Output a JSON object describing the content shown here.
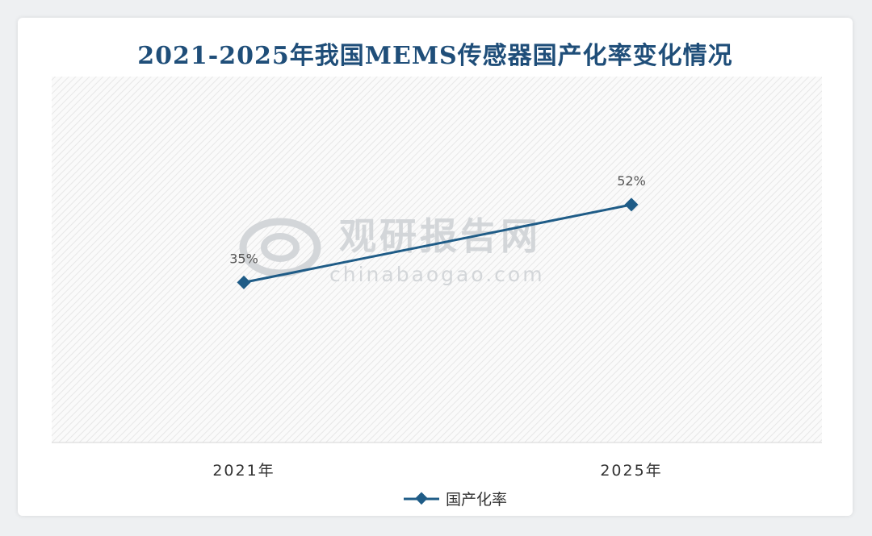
{
  "chart_data": {
    "type": "line",
    "title": "2021-2025年我国MEMS传感器国产化率变化情况",
    "categories": [
      "2021年",
      "2025年"
    ],
    "series": [
      {
        "name": "国产化率",
        "values": [
          35,
          52
        ],
        "labels": [
          "35%",
          "52%"
        ]
      }
    ],
    "ylim": [
      0,
      80
    ],
    "grid": false,
    "legend": "bottom-center",
    "colors": {
      "line": "#1f5c87",
      "title": "#1f4e79"
    }
  },
  "watermark": {
    "name": "观研报告网",
    "url": "chinabaogao.com"
  }
}
